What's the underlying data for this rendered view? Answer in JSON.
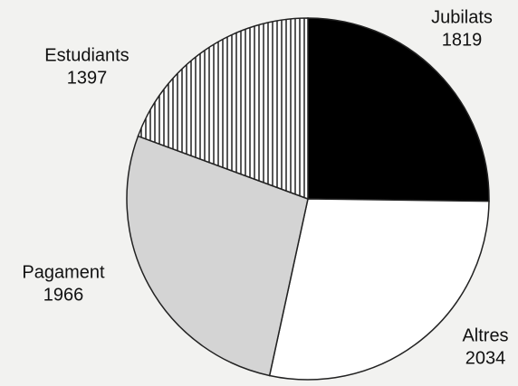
{
  "chart_data": {
    "type": "pie",
    "categories": [
      "Jubilats",
      "Altres",
      "Pagament",
      "Estudiants"
    ],
    "values": [
      1819,
      2034,
      1966,
      1397
    ],
    "colors": [
      "#000000",
      "#ffffff",
      "#d4d4d4",
      "#ffffff"
    ],
    "patterns": [
      "solid",
      "solid",
      "solid",
      "vertical-lines"
    ],
    "start_angle": 0,
    "direction": "clockwise"
  }
}
